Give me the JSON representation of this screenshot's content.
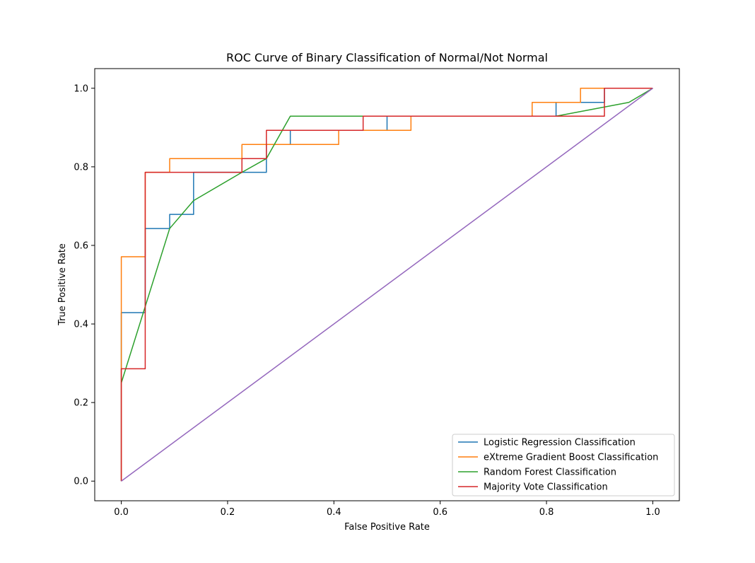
{
  "chart_data": {
    "type": "line",
    "title": "ROC Curve of Binary Classification of Normal/Not Normal",
    "xlabel": "False Positive Rate",
    "ylabel": "True Positive Rate",
    "xlim": [
      -0.05,
      1.05
    ],
    "ylim": [
      -0.05,
      1.05
    ],
    "xticks": [
      "0.0",
      "0.2",
      "0.4",
      "0.6",
      "0.8",
      "1.0"
    ],
    "yticks": [
      "0.0",
      "0.2",
      "0.4",
      "0.6",
      "0.8",
      "1.0"
    ],
    "grid": false,
    "legend_position": "lower-right",
    "series": [
      {
        "name": "Logistic Regression Classification",
        "color": "#1f77b4",
        "x": [
          0.0,
          0.0,
          0.0,
          0.045,
          0.045,
          0.091,
          0.091,
          0.136,
          0.136,
          0.227,
          0.273,
          0.273,
          0.318,
          0.318,
          0.5,
          0.5,
          0.818,
          0.818,
          0.909,
          0.909,
          1.0
        ],
        "y": [
          0.0,
          0.286,
          0.429,
          0.429,
          0.643,
          0.643,
          0.679,
          0.679,
          0.786,
          0.786,
          0.786,
          0.857,
          0.857,
          0.893,
          0.893,
          0.929,
          0.929,
          0.964,
          0.964,
          1.0,
          1.0
        ]
      },
      {
        "name": "eXtreme Gradient Boost Classification",
        "color": "#ff7f0e",
        "x": [
          0.0,
          0.0,
          0.045,
          0.045,
          0.091,
          0.091,
          0.227,
          0.227,
          0.409,
          0.409,
          0.545,
          0.545,
          0.773,
          0.773,
          0.864,
          0.864,
          1.0
        ],
        "y": [
          0.0,
          0.571,
          0.571,
          0.786,
          0.786,
          0.821,
          0.821,
          0.857,
          0.857,
          0.893,
          0.893,
          0.929,
          0.929,
          0.964,
          0.964,
          1.0,
          1.0
        ]
      },
      {
        "name": "Random Forest Classification",
        "color": "#2ca02c",
        "x": [
          0.0,
          0.091,
          0.136,
          0.227,
          0.273,
          0.318,
          0.5,
          0.818,
          0.955,
          1.0
        ],
        "y": [
          0.25,
          0.643,
          0.714,
          0.786,
          0.821,
          0.929,
          0.929,
          0.929,
          0.964,
          1.0
        ]
      },
      {
        "name": "Majority Vote Classification",
        "color": "#d62728",
        "x": [
          0.0,
          0.0,
          0.045,
          0.045,
          0.227,
          0.227,
          0.273,
          0.273,
          0.455,
          0.455,
          0.909,
          0.909,
          1.0
        ],
        "y": [
          0.0,
          0.286,
          0.286,
          0.786,
          0.786,
          0.821,
          0.821,
          0.893,
          0.893,
          0.929,
          0.929,
          1.0,
          1.0
        ]
      },
      {
        "color": "#9467bd",
        "x": [
          0.0,
          1.0
        ],
        "y": [
          0.0,
          1.0
        ]
      }
    ]
  }
}
